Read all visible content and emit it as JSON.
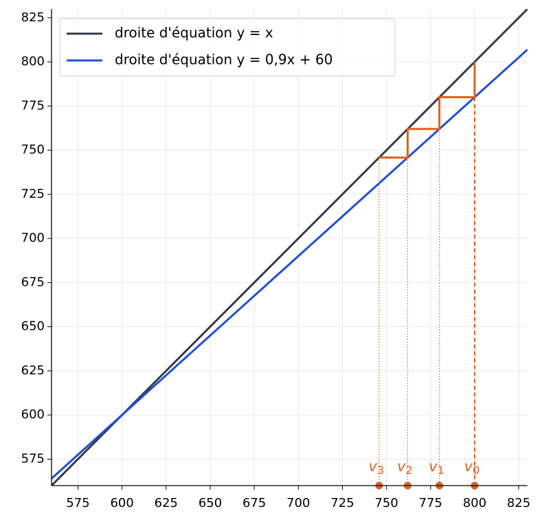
{
  "chart_data": {
    "type": "cobweb",
    "xlim": [
      560,
      830
    ],
    "ylim": [
      560,
      830
    ],
    "xticks": [
      575,
      600,
      625,
      650,
      675,
      700,
      725,
      750,
      775,
      800,
      825
    ],
    "yticks": [
      575,
      600,
      625,
      650,
      675,
      700,
      725,
      750,
      775,
      800,
      825
    ],
    "grid": true,
    "legend": "upper left",
    "series": [
      {
        "name": "droite d'équation y = x",
        "color": "#343a4a",
        "x": [
          560,
          830
        ],
        "values": [
          560,
          830
        ]
      },
      {
        "name": "droite d'équation y = 0,9x + 60",
        "color": "#1f4fd1",
        "x": [
          560,
          830
        ],
        "values": [
          564,
          807
        ]
      }
    ],
    "cobweb": {
      "color": "#e0601f",
      "x": [
        800,
        800,
        780,
        780,
        762,
        762,
        745.8
      ],
      "values": [
        800,
        780,
        780,
        762,
        762,
        745.8,
        745.8
      ]
    },
    "terms": [
      {
        "name": "v",
        "index": 0,
        "value": 800
      },
      {
        "name": "v",
        "index": 1,
        "value": 780
      },
      {
        "name": "v",
        "index": 2,
        "value": 762
      },
      {
        "name": "v",
        "index": 3,
        "value": 745.8
      }
    ]
  }
}
